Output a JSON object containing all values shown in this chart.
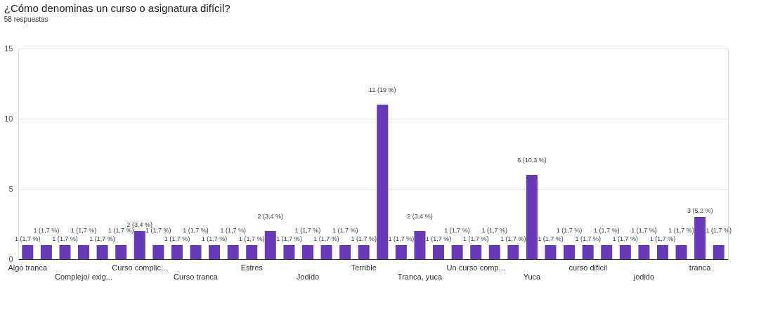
{
  "chart_data": {
    "type": "bar",
    "title": "¿Cómo denominas un curso o asignatura difícil?",
    "subtitle": "58 respuestas",
    "categories": [
      "Algo tranca",
      null,
      null,
      "Complejo/ exig...",
      null,
      null,
      "Curso complic...",
      null,
      null,
      "Curso tranca",
      null,
      null,
      "Estres",
      null,
      null,
      "Jodido",
      null,
      null,
      "Terrible",
      null,
      null,
      "Tranca, yuca",
      null,
      null,
      "Un curso comp...",
      null,
      null,
      "Yuca",
      null,
      null,
      "curso dificil",
      null,
      null,
      "jodido",
      null,
      null,
      "tranca",
      null
    ],
    "values": [
      1,
      1,
      1,
      1,
      1,
      1,
      2,
      1,
      1,
      1,
      1,
      1,
      1,
      2,
      1,
      1,
      1,
      1,
      1,
      11,
      1,
      2,
      1,
      1,
      1,
      1,
      1,
      6,
      1,
      1,
      1,
      1,
      1,
      1,
      1,
      1,
      3,
      1
    ],
    "value_labels": [
      "1 (1,7 %)",
      "1 (1,7 %)",
      "1 (1,7 %)",
      "1 (1,7 %)",
      "1 (1,7 %)",
      "1 (1,7 %)",
      "2 (3,4 %)",
      "1 (1,7 %)",
      "1 (1,7 %)",
      "1 (1,7 %)",
      "1 (1,7 %)",
      "1 (1,7 %)",
      "1 (1,7 %)",
      "2 (3,4 %)",
      "1 (1,7 %)",
      "1 (1,7 %)",
      "1 (1,7 %)",
      "1 (1,7 %)",
      "1 (1,7 %)",
      "11 (19 %)",
      "1 (1,7 %)",
      "2 (3,4 %)",
      "1 (1,7 %)",
      "1 (1,7 %)",
      "1 (1,7 %)",
      "1 (1,7 %)",
      "1 (1,7 %)",
      "6 (10,3 %)",
      "1 (1,7 %)",
      "1 (1,7 %)",
      "1 (1,7 %)",
      "1 (1,7 %)",
      "1 (1,7 %)",
      "1 (1,7 %)",
      "1 (1,7 %)",
      "1 (1,7 %)",
      "3 (5,2 %)",
      "1 (1,7 %)"
    ],
    "color": "#673ab7",
    "ylim": [
      0,
      15
    ],
    "yticks": [
      0,
      5,
      10,
      15
    ],
    "grid": "y"
  }
}
